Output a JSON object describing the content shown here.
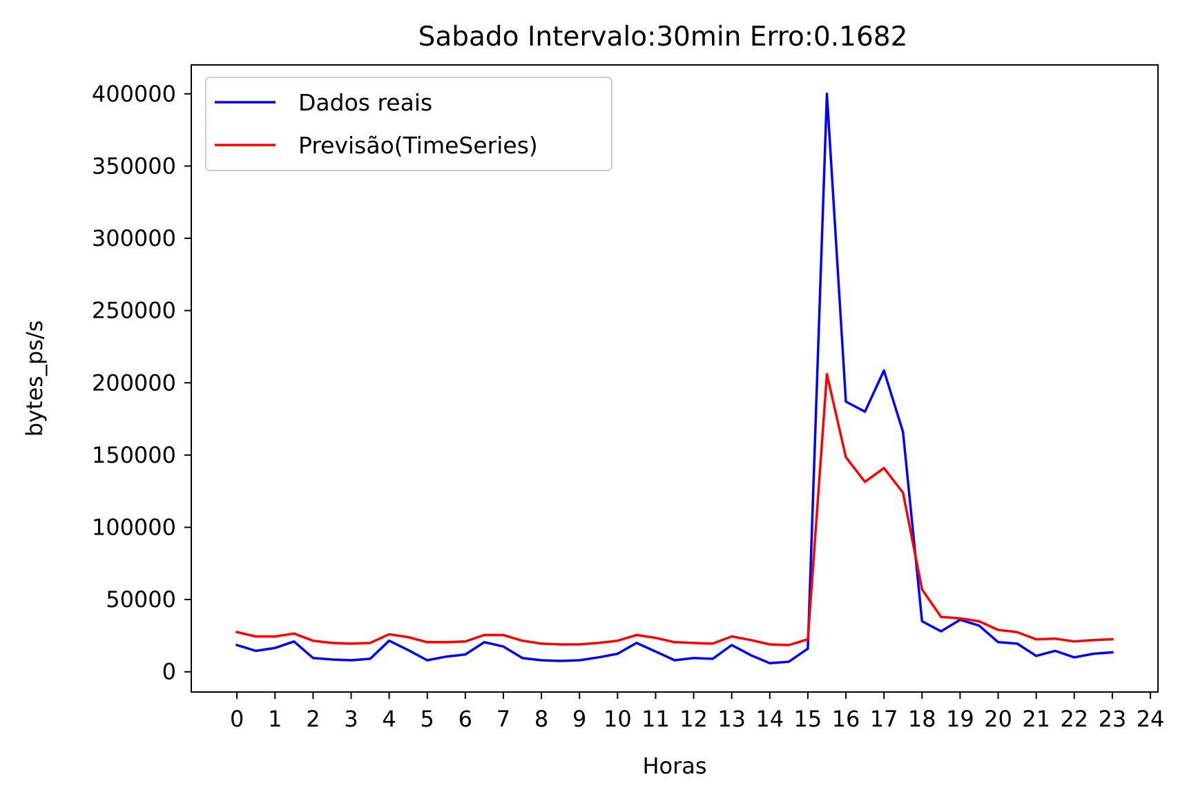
{
  "chart_data": {
    "type": "line",
    "title": "Sabado Intervalo:30min Erro:0.1682",
    "xlabel": "Horas",
    "ylabel": "bytes_ps/s",
    "xlim": [
      -1.2,
      24.2
    ],
    "ylim": [
      -14000,
      420000
    ],
    "xticks": [
      0,
      1,
      2,
      3,
      4,
      5,
      6,
      7,
      8,
      9,
      10,
      11,
      12,
      13,
      14,
      15,
      16,
      17,
      18,
      19,
      20,
      21,
      22,
      23,
      24
    ],
    "xtick_labels": [
      "0",
      "1",
      "2",
      "3",
      "4",
      "5",
      "6",
      "7",
      "8",
      "9",
      "10",
      "11",
      "12",
      "13",
      "14",
      "15",
      "16",
      "17",
      "18",
      "19",
      "20",
      "21",
      "22",
      "23",
      "24"
    ],
    "yticks": [
      0,
      50000,
      100000,
      150000,
      200000,
      250000,
      300000,
      350000,
      400000
    ],
    "ytick_labels": [
      "0",
      "50000",
      "100000",
      "150000",
      "200000",
      "250000",
      "300000",
      "350000",
      "400000"
    ],
    "grid": false,
    "legend_position": "top-left",
    "x": [
      0,
      0.5,
      1,
      1.5,
      2,
      2.5,
      3,
      3.5,
      4,
      4.5,
      5,
      5.5,
      6,
      6.5,
      7,
      7.5,
      8,
      8.5,
      9,
      9.5,
      10,
      10.5,
      11,
      11.5,
      12,
      12.5,
      13,
      13.5,
      14,
      14.5,
      15,
      15.5,
      16,
      16.5,
      17,
      17.5,
      18,
      18.5,
      19,
      19.5,
      20,
      20.5,
      21,
      21.5,
      22,
      22.5,
      23
    ],
    "series": [
      {
        "name": "Dados reais",
        "color": "#0000ff",
        "values": [
          18500,
          14500,
          16500,
          21000,
          9500,
          8500,
          8000,
          9000,
          21500,
          15000,
          8000,
          10500,
          12000,
          20500,
          17500,
          9500,
          8000,
          7500,
          8000,
          10000,
          12500,
          20000,
          14000,
          8000,
          9500,
          9000,
          18500,
          11500,
          6000,
          7000,
          16000,
          400000,
          187000,
          180000,
          208500,
          166000,
          35000,
          28000,
          36000,
          32000,
          20500,
          19500,
          11000,
          14500,
          10000,
          12500,
          13500
        ]
      },
      {
        "name": "Previsão(TimeSeries)",
        "color": "#ff0000",
        "values": [
          27500,
          24500,
          24500,
          26500,
          21500,
          20000,
          19500,
          20000,
          26000,
          24000,
          20500,
          20500,
          21000,
          25500,
          25500,
          21500,
          19500,
          19000,
          19000,
          20000,
          21500,
          25500,
          23500,
          20500,
          20000,
          19500,
          24500,
          22000,
          19000,
          18500,
          22500,
          206000,
          148500,
          131500,
          141000,
          124000,
          57000,
          38000,
          37000,
          35000,
          29000,
          27500,
          22500,
          23000,
          21000,
          22000,
          22500
        ]
      }
    ]
  }
}
